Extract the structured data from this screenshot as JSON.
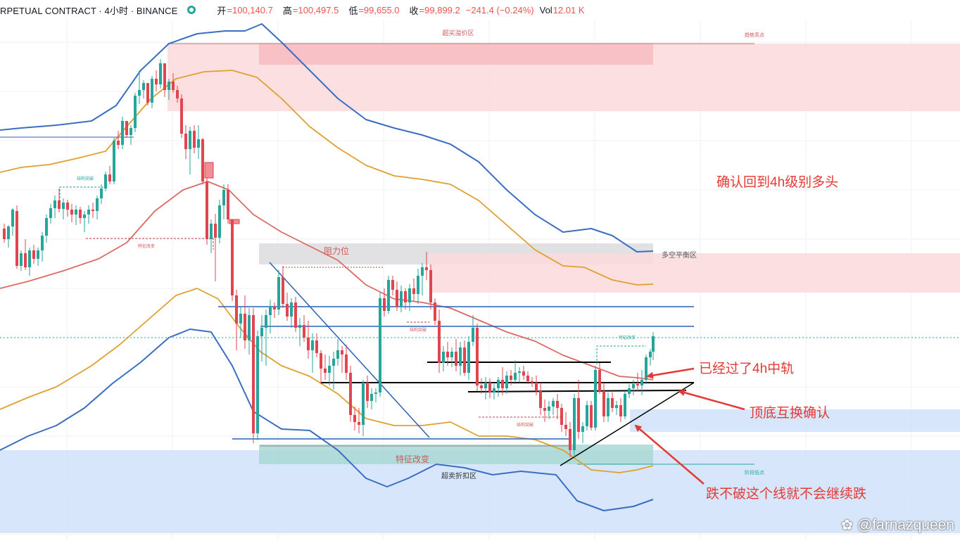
{
  "header": {
    "symbol_text": "RPETUAL CONTRACT · 4小时 · BINANCE",
    "open_label": "开",
    "open": "=100,140.7",
    "high_label": "高",
    "high": "=100,497.5",
    "low_label": "低",
    "low": "=99,655.0",
    "close_label": "收",
    "close": "=99,899.2",
    "change": "−241.4 (−0.24%)",
    "vol_label": "Vol",
    "vol": "12.01 K"
  },
  "zones": {
    "overbought": "超买溢价区",
    "trend_high": "趋势高点",
    "resistance": "阻力位",
    "balance": "多空平衡区",
    "feature_change_main": "特征改变",
    "oversold": "超卖折扣区",
    "cycle_low": "阶段低点"
  },
  "small_labels": {
    "breakout_1": "结构突破",
    "feature_change_1": "特征改变",
    "breakout_2": "结构突破",
    "breakout_3": "结构突破",
    "feature_change_2": "特征改变"
  },
  "annotations": {
    "confirm_bull": "确认回到4h级别多头",
    "passed_mid": "已经过了4h中轨",
    "swap_confirm": "顶底互换确认",
    "no_break": "跌不破这个线就不会继续跌"
  },
  "watermark": {
    "icon": "weibo-icon",
    "text": "@farnazqueen"
  },
  "colors": {
    "up": "#26a69a",
    "down": "#e04550",
    "bb_outer": "#3a6ec2",
    "bb_inner": "#e0a030",
    "bb_mid": "#dd6a64",
    "supply_zone": "#fbdadc",
    "demand_zone": "#d3e3fb",
    "annotation_red": "#e53935"
  },
  "chart_data": {
    "type": "candlestick",
    "timeframe": "4小时",
    "exchange": "BINANCE",
    "last_bar": {
      "open": 100140.7,
      "high": 100497.5,
      "low": 99655.0,
      "close": 99899.2,
      "change": -241.4,
      "change_pct": -0.24,
      "volume": "12.01 K"
    },
    "indicators": [
      "布林带 (上轨/中轨/下轨)",
      "内层通道"
    ],
    "price_axis_visible": false
  }
}
